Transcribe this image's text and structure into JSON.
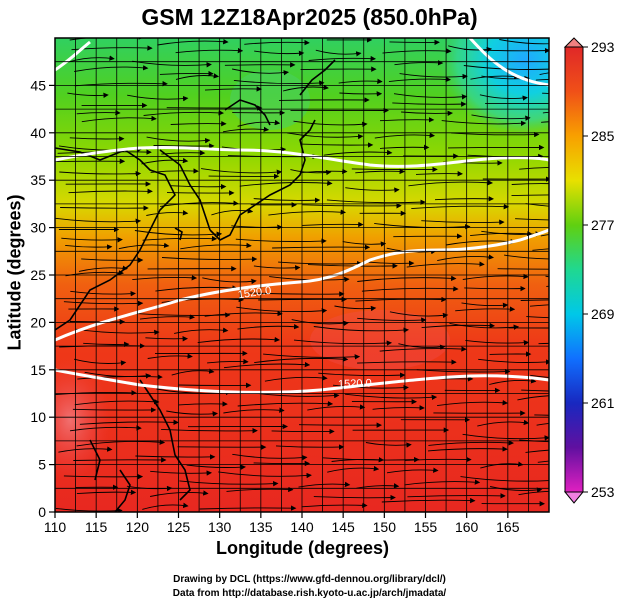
{
  "title": "GSM 12Z18Apr2025 (850.0hPa)",
  "xlabel": "Longitude (degrees)",
  "ylabel": "Latitude  (degrees)",
  "credits": {
    "line1": "Drawing by DCL (https://www.gfd-dennou.org/library/dcl/)",
    "line2": "Data from http://database.rish.kyoto-u.ac.jp/arch/jmadata/"
  },
  "map": {
    "lon_range": [
      110,
      170
    ],
    "lat_range": [
      0,
      50
    ],
    "lon_ticks": [
      110,
      115,
      120,
      125,
      130,
      135,
      140,
      145,
      150,
      155,
      160,
      165
    ],
    "lat_ticks": [
      0,
      5,
      10,
      15,
      20,
      25,
      30,
      35,
      40,
      45
    ],
    "grid": true,
    "variable_colors": "temperature (K)",
    "contour_variable": "geopotential height (m)"
  },
  "colorbar": {
    "range": [
      253,
      293
    ],
    "tick_labels": [
      "293",
      "285",
      "277",
      "269",
      "261",
      "253"
    ],
    "colors": [
      "#e020c0",
      "#7010a0",
      "#1010b0",
      "#1060ff",
      "#00c8e0",
      "#20d890",
      "#40d020",
      "#a8e000",
      "#f0d800",
      "#f89000",
      "#f04010",
      "#e02020"
    ]
  },
  "contour_labels": [
    "1520.0",
    "1520.0"
  ]
}
